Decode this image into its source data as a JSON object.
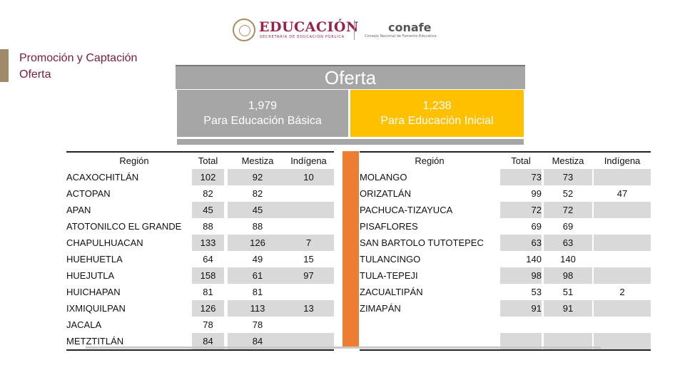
{
  "header": {
    "brand_primary": "EDUCACIÓN",
    "brand_primary_sub": "SECRETARÍA DE EDUCACIÓN PÚBLICA",
    "brand_secondary": "conafe",
    "brand_secondary_sub": "Consejo Nacional de Fomento Educativo"
  },
  "sidebar": {
    "line1": "Promoción y Captación",
    "line2": "Oferta"
  },
  "main": {
    "title": "Oferta",
    "basica": {
      "value": "1,979",
      "label": "Para Educación Básica"
    },
    "inicial": {
      "value": "1,238",
      "label": "Para Educación Inicial"
    }
  },
  "left_table": {
    "headers": [
      "Región",
      "Total",
      "Mestiza",
      "Indígena"
    ],
    "rows": [
      [
        "ACAXOCHITLÁN",
        "102",
        "92",
        "10"
      ],
      [
        "ACTOPAN",
        "82",
        "82",
        ""
      ],
      [
        "APAN",
        "45",
        "45",
        ""
      ],
      [
        "ATOTONILCO EL GRANDE",
        "88",
        "88",
        ""
      ],
      [
        "CHAPULHUACAN",
        "133",
        "126",
        "7"
      ],
      [
        "HUEHUETLA",
        "64",
        "49",
        "15"
      ],
      [
        "HUEJUTLA",
        "158",
        "61",
        "97"
      ],
      [
        "HUICHAPAN",
        "81",
        "81",
        ""
      ],
      [
        "IXMIQUILPAN",
        "126",
        "113",
        "13"
      ],
      [
        "JACALA",
        "78",
        "78",
        ""
      ],
      [
        "METZTITLÁN",
        "84",
        "84",
        ""
      ]
    ]
  },
  "right_table": {
    "headers": [
      "Región",
      "Total",
      "Mestiza",
      "Indígena"
    ],
    "rows": [
      [
        "MOLANGO",
        "73",
        "73",
        ""
      ],
      [
        "ORIZATLÁN",
        "99",
        "52",
        "47"
      ],
      [
        "PACHUCA-TIZAYUCA",
        "72",
        "72",
        ""
      ],
      [
        "PISAFLORES",
        "69",
        "69",
        ""
      ],
      [
        "SAN BARTOLO TUTOTEPEC",
        "63",
        "63",
        ""
      ],
      [
        "TULANCINGO",
        "140",
        "140",
        ""
      ],
      [
        "TULA-TEPEJI",
        "98",
        "98",
        ""
      ],
      [
        "ZACUALTIPÁN",
        "53",
        "51",
        "2"
      ],
      [
        "ZIMAPÁN",
        "91",
        "91",
        ""
      ],
      [
        "",
        "",
        "",
        ""
      ],
      [
        "",
        "",
        "",
        ""
      ]
    ]
  },
  "colors": {
    "accent_gray": "#a6a6a6",
    "accent_yellow": "#ffc000",
    "accent_orange": "#ed7d31",
    "brand_maroon": "#9b2247"
  }
}
